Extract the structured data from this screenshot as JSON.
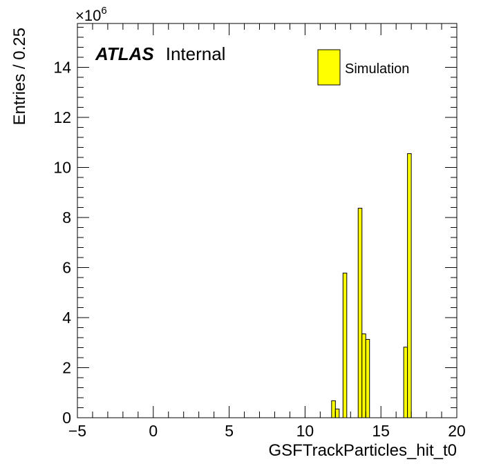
{
  "chart_data": {
    "type": "bar",
    "xlabel": "GSFTrackParticles_hit_t0",
    "ylabel": "Entries / 0.25",
    "multiplier": {
      "base": "×10",
      "exponent": "6"
    },
    "atlas_label": {
      "bold": "ATLAS",
      "normal": "Internal"
    },
    "legend": {
      "label": "Simulation",
      "placement": "top-right"
    },
    "bin_width": 0.25,
    "xlim": [
      -5,
      20
    ],
    "ylim": [
      0,
      15.75
    ],
    "x_ticks": [
      -5,
      0,
      5,
      10,
      15,
      20
    ],
    "x_tick_labels": [
      "−5",
      "0",
      "5",
      "10",
      "15",
      "20"
    ],
    "y_ticks": [
      0,
      2,
      4,
      6,
      8,
      10,
      12,
      14
    ],
    "y_tick_labels": [
      "0",
      "2",
      "4",
      "6",
      "8",
      "10",
      "12",
      "14"
    ],
    "series": [
      {
        "name": "Simulation",
        "color": "#ffff00",
        "bins": [
          {
            "x": 11.75,
            "value": 0.68
          },
          {
            "x": 12.0,
            "value": 0.35
          },
          {
            "x": 12.5,
            "value": 5.78
          },
          {
            "x": 13.5,
            "value": 8.37
          },
          {
            "x": 13.75,
            "value": 3.35
          },
          {
            "x": 14.0,
            "value": 3.13
          },
          {
            "x": 16.5,
            "value": 2.82
          },
          {
            "x": 16.75,
            "value": 10.55
          }
        ]
      }
    ]
  }
}
